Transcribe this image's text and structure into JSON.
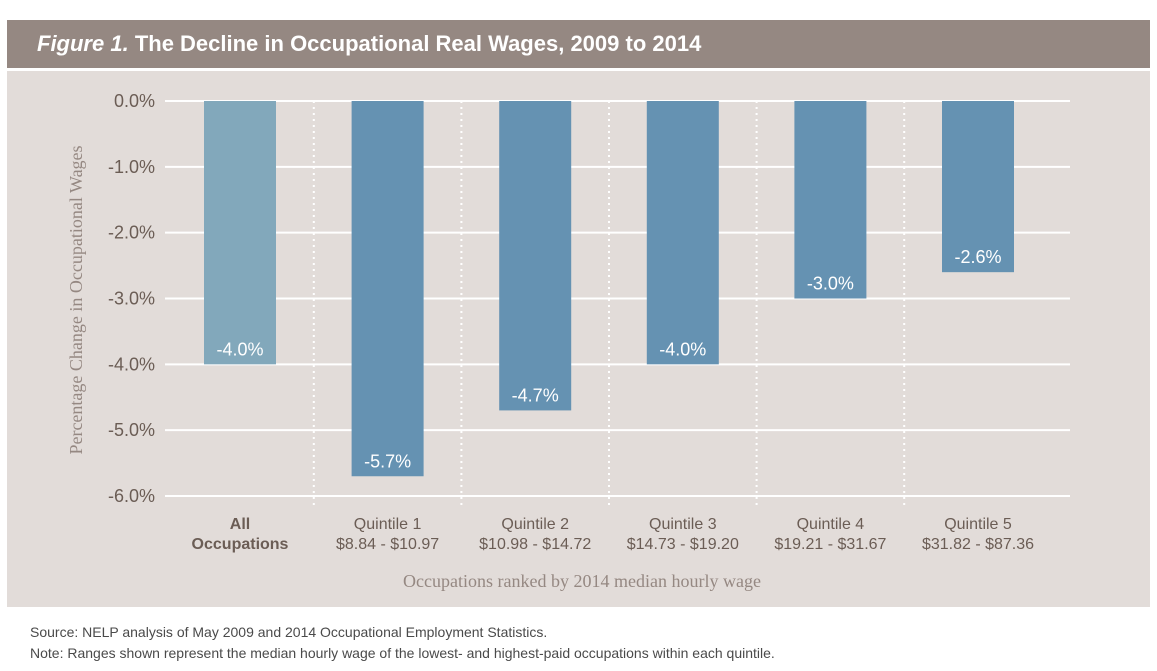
{
  "chart_data": {
    "type": "bar",
    "title_prefix": "Figure 1.",
    "title": "The Decline in Occupational Real Wages, 2009 to 2014",
    "categories": [
      {
        "line1": "All",
        "line2": "Occupations",
        "bold": true
      },
      {
        "line1": "Quintile 1",
        "line2": "$8.84 - $10.97"
      },
      {
        "line1": "Quintile 2",
        "line2": "$10.98 - $14.72"
      },
      {
        "line1": "Quintile 3",
        "line2": "$14.73 - $19.20"
      },
      {
        "line1": "Quintile 4",
        "line2": "$19.21 - $31.67"
      },
      {
        "line1": "Quintile 5",
        "line2": "$31.82 - $87.36"
      }
    ],
    "values": [
      -4.0,
      -5.7,
      -4.7,
      -4.0,
      -3.0,
      -2.6
    ],
    "labels": [
      "-4.0%",
      "-5.7%",
      "-4.7%",
      "-4.0%",
      "-3.0%",
      "-2.6%"
    ],
    "ylabel": "Percentage Change in Occupational Wages",
    "xlabel": "Occupations ranked by 2014 median hourly wage",
    "ylim": [
      -6,
      0
    ],
    "yticks": [
      "0.0%",
      "-1.0%",
      "-2.0%",
      "-3.0%",
      "-4.0%",
      "-5.0%",
      "-6.0%"
    ],
    "grid": true,
    "colors": {
      "first_bar": "#82a8bb",
      "bars": "#6592b2",
      "title_bg": "#958882",
      "panel_bg": "#e2dcd9",
      "axis_text": "#6b5d55"
    }
  },
  "footer": {
    "source": "Source: NELP analysis of May 2009 and 2014 Occupational Employment Statistics.",
    "note": "Note: Ranges shown represent the median hourly wage of the lowest- and highest-paid occupations within each quintile."
  }
}
